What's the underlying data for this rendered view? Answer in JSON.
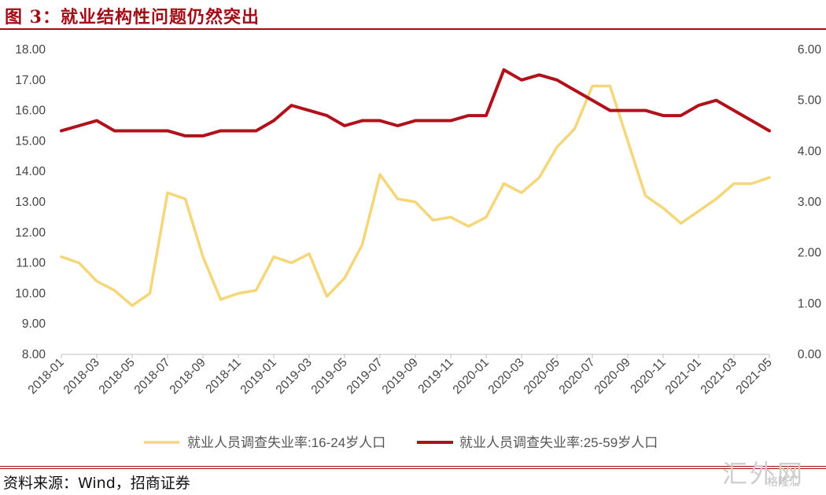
{
  "figure": {
    "title": "图 3：就业结构性问题仍然突出",
    "source": "资料来源：Wind，招商证券",
    "watermark": "汇外网",
    "watermark_sub": "格隆汇"
  },
  "colors": {
    "title": "#a10c16",
    "series_16_24": "#f5d77a",
    "series_25_59": "#b0111b"
  },
  "chart_data": {
    "type": "line",
    "x": [
      "2018-01",
      "2018-02",
      "2018-03",
      "2018-04",
      "2018-05",
      "2018-06",
      "2018-07",
      "2018-08",
      "2018-09",
      "2018-10",
      "2018-11",
      "2018-12",
      "2019-01",
      "2019-02",
      "2019-03",
      "2019-04",
      "2019-05",
      "2019-06",
      "2019-07",
      "2019-08",
      "2019-09",
      "2019-10",
      "2019-11",
      "2019-12",
      "2020-01",
      "2020-02",
      "2020-03",
      "2020-04",
      "2020-05",
      "2020-06",
      "2020-07",
      "2020-08",
      "2020-09",
      "2020-10",
      "2020-11",
      "2020-12",
      "2021-01",
      "2021-02",
      "2021-03",
      "2021-04",
      "2021-05"
    ],
    "x_tick_labels": [
      "2018-01",
      "2018-03",
      "2018-05",
      "2018-07",
      "2018-09",
      "2018-11",
      "2019-01",
      "2019-03",
      "2019-05",
      "2019-07",
      "2019-09",
      "2019-11",
      "2020-01",
      "2020-03",
      "2020-05",
      "2020-07",
      "2020-09",
      "2020-11",
      "2021-01",
      "2021-03",
      "2021-05"
    ],
    "y_left": {
      "lim": [
        8,
        18
      ],
      "ticks": [
        "8.00",
        "9.00",
        "10.00",
        "11.00",
        "12.00",
        "13.00",
        "14.00",
        "15.00",
        "16.00",
        "17.00",
        "18.00"
      ]
    },
    "y_right": {
      "lim": [
        0,
        6
      ],
      "ticks": [
        "0.00",
        "1.00",
        "2.00",
        "3.00",
        "4.00",
        "5.00",
        "6.00"
      ]
    },
    "grid": false,
    "legend_position": "bottom",
    "series": [
      {
        "name": "就业人员调查失业率:16-24岁人口",
        "axis": "left",
        "color": "#f5d77a",
        "values": [
          11.2,
          11.0,
          10.4,
          10.1,
          9.6,
          10.0,
          13.3,
          13.1,
          11.2,
          9.8,
          10.0,
          10.1,
          11.2,
          11.0,
          11.3,
          9.9,
          10.5,
          11.6,
          13.9,
          13.1,
          13.0,
          12.4,
          12.5,
          12.2,
          12.5,
          13.6,
          13.3,
          13.8,
          14.8,
          15.4,
          16.8,
          16.8,
          15.0,
          13.2,
          12.8,
          12.3,
          12.7,
          13.1,
          13.6,
          13.6,
          13.8
        ]
      },
      {
        "name": "就业人员调查失业率:25-59岁人口",
        "axis": "right",
        "color": "#b0111b",
        "values": [
          4.4,
          4.5,
          4.6,
          4.4,
          4.4,
          4.4,
          4.4,
          4.3,
          4.3,
          4.4,
          4.4,
          4.4,
          4.6,
          4.9,
          4.8,
          4.7,
          4.5,
          4.6,
          4.6,
          4.5,
          4.6,
          4.6,
          4.6,
          4.7,
          4.7,
          5.6,
          5.4,
          5.5,
          5.4,
          5.2,
          5.0,
          4.8,
          4.8,
          4.8,
          4.7,
          4.7,
          4.9,
          5.0,
          4.8,
          4.6,
          4.4
        ]
      }
    ]
  }
}
